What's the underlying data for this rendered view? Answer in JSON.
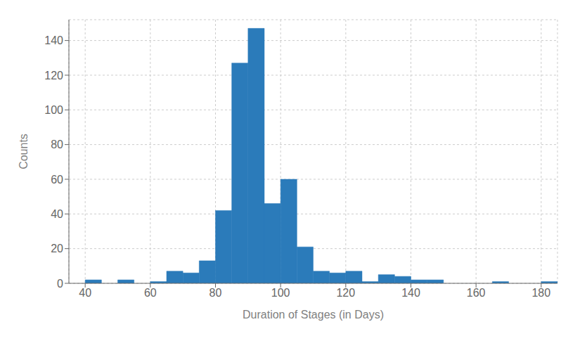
{
  "chart_data": {
    "type": "histogram",
    "xlabel": "Duration of Stages (in Days)",
    "ylabel": "Counts",
    "bins": [
      35,
      40,
      45,
      50,
      55,
      60,
      65,
      70,
      75,
      80,
      85,
      90,
      95,
      100,
      105,
      110,
      115,
      120,
      125,
      130,
      135,
      140,
      145,
      150,
      155,
      160,
      165,
      170,
      175,
      180,
      185
    ],
    "values": [
      0,
      2,
      0,
      2,
      0,
      1,
      7,
      6,
      13,
      42,
      127,
      147,
      46,
      60,
      21,
      7,
      6,
      7,
      1,
      5,
      4,
      2,
      2,
      0,
      0,
      0,
      1,
      0,
      0,
      1
    ],
    "color": "#2b7bba",
    "xlim": [
      35,
      185
    ],
    "ylim": [
      0,
      152
    ],
    "xticks": [
      40,
      60,
      80,
      100,
      120,
      140,
      160,
      180
    ],
    "yticks": [
      0,
      20,
      40,
      60,
      80,
      100,
      120,
      140
    ],
    "grid": true
  }
}
